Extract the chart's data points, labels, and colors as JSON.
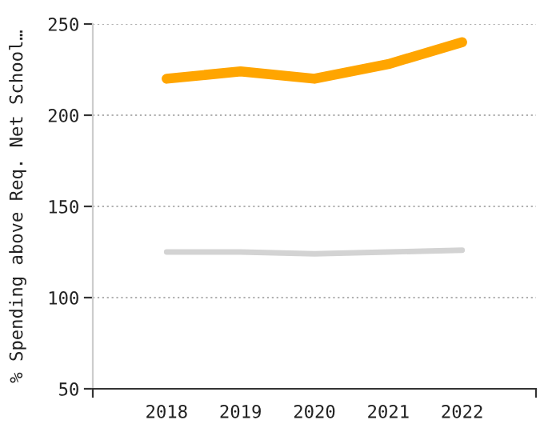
{
  "chart_data": {
    "type": "line",
    "ylabel": "% Spending above Req. Net School…",
    "x": [
      2018,
      2019,
      2020,
      2021,
      2022
    ],
    "series": [
      {
        "color": "#ffa500",
        "values": [
          220,
          224,
          220,
          228,
          240
        ]
      },
      {
        "color": "#d3d3d3",
        "values": [
          125,
          125,
          124,
          125,
          126
        ]
      }
    ],
    "xlim": [
      2017,
      2023
    ],
    "xticks": [
      {
        "value": 2017,
        "label": null
      },
      2018,
      2019,
      2020,
      2021,
      2022,
      {
        "value": 2023,
        "label": null
      }
    ],
    "ylim": [
      50,
      250
    ],
    "yticks": [
      50,
      100,
      150,
      200,
      250
    ],
    "grid": "y",
    "marker": "none",
    "line_style": "solid"
  }
}
